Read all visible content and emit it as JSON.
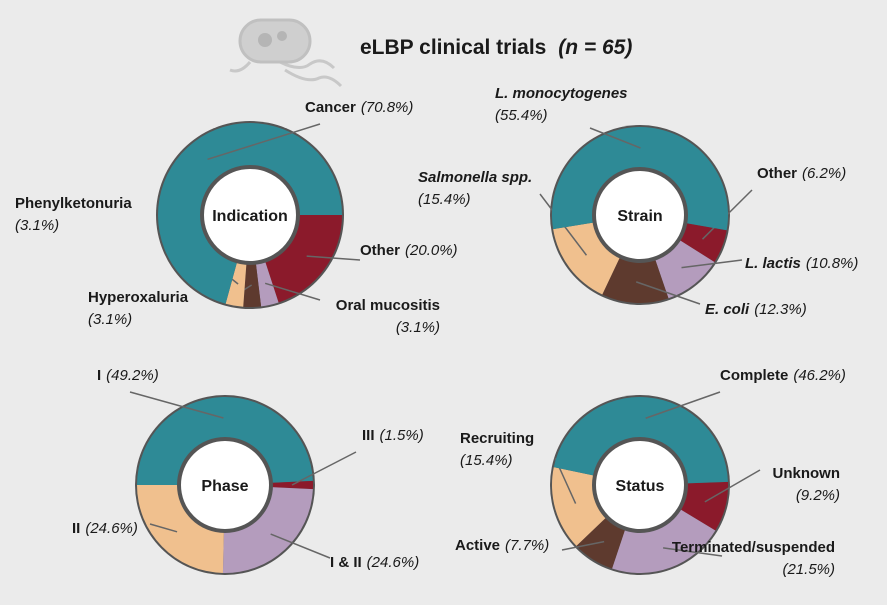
{
  "title": "eLBP clinical trials",
  "title_note": "(n = 65)",
  "chart_data": [
    {
      "type": "pie",
      "title": "Indication",
      "categories": [
        "Other",
        "Oral mucositis",
        "Hyperoxaluria",
        "Phenylketonuria",
        "Cancer"
      ],
      "values": [
        20.0,
        3.1,
        3.1,
        3.1,
        70.8
      ],
      "value_labels": [
        "(20.0%)",
        "(3.1%)",
        "(3.1%)",
        "(3.1%)",
        "(70.8%)"
      ],
      "colors": [
        "#8b1a2b",
        "#b49cbd",
        "#5e3a2e",
        "#f0c08e",
        "#2e8a96"
      ]
    },
    {
      "type": "pie",
      "title": "Strain",
      "categories": [
        "Other",
        "L. lactis",
        "E. coli",
        "Salmonella spp.",
        "L. monocytogenes"
      ],
      "values": [
        6.2,
        10.8,
        12.3,
        15.4,
        55.4
      ],
      "value_labels": [
        "(6.2%)",
        "(10.8%)",
        "(12.3%)",
        "(15.4%)",
        "(55.4%)"
      ],
      "colors": [
        "#8b1a2b",
        "#b49cbd",
        "#5e3a2e",
        "#f0c08e",
        "#2e8a96"
      ]
    },
    {
      "type": "pie",
      "title": "Phase",
      "categories": [
        "I",
        "III",
        "I & II",
        "II"
      ],
      "values": [
        49.2,
        1.5,
        24.6,
        24.6
      ],
      "value_labels": [
        "(49.2%)",
        "(1.5%)",
        "(24.6%)",
        "(24.6%)"
      ],
      "colors": [
        "#2e8a96",
        "#8b1a2b",
        "#b49cbd",
        "#f0c08e"
      ]
    },
    {
      "type": "pie",
      "title": "Status",
      "categories": [
        "Unknown",
        "Terminated/suspended",
        "Active",
        "Recruiting",
        "Complete"
      ],
      "values": [
        9.2,
        21.5,
        7.7,
        15.4,
        46.2
      ],
      "value_labels": [
        "(9.2%)",
        "(21.5%)",
        "(7.7%)",
        "(15.4%)",
        "(46.2%)"
      ],
      "colors": [
        "#8b1a2b",
        "#b49cbd",
        "#5e3a2e",
        "#f0c08e",
        "#2e8a96"
      ]
    }
  ]
}
